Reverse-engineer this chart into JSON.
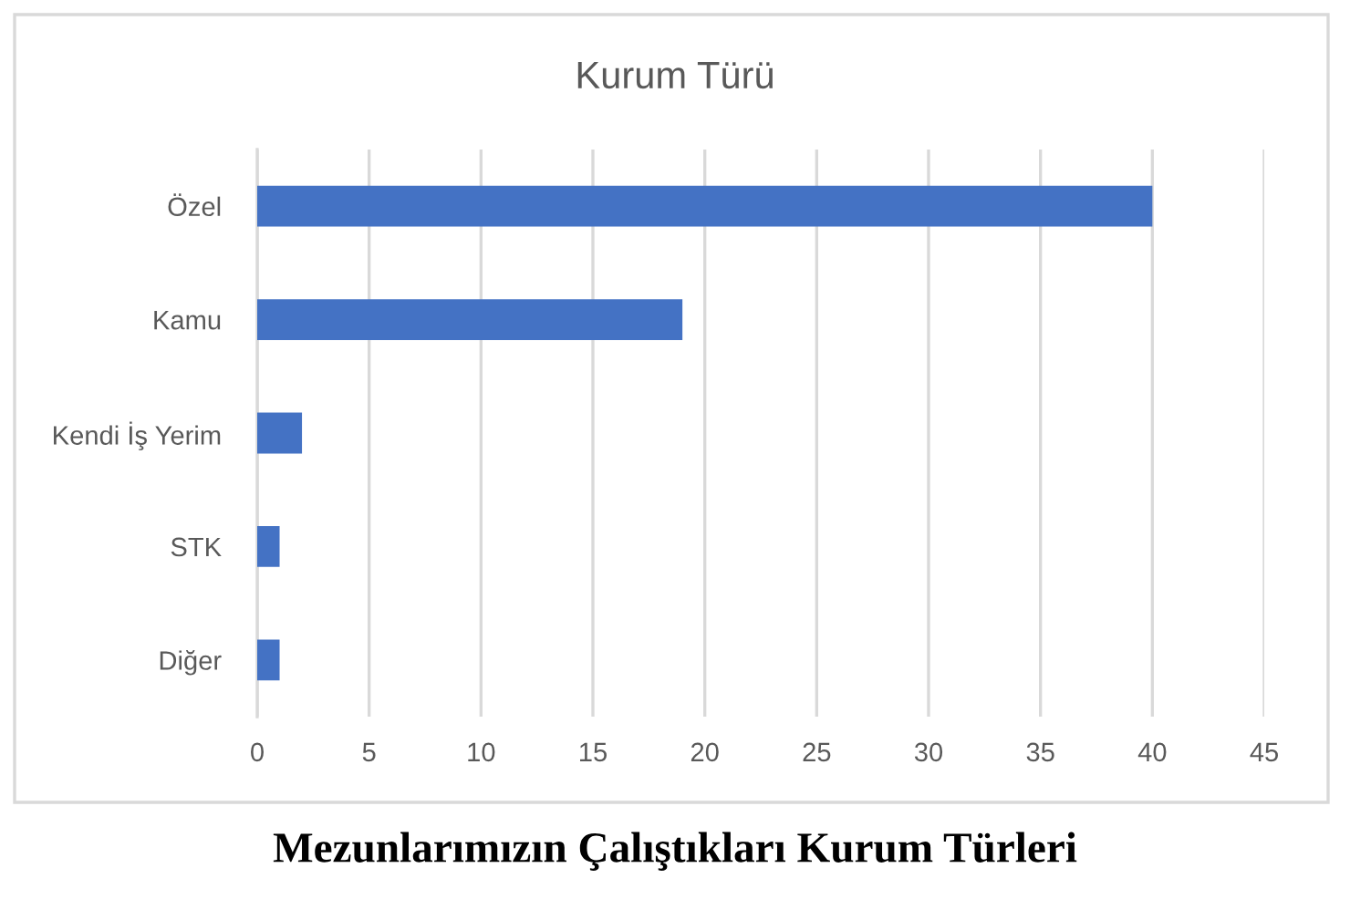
{
  "chart_data": {
    "type": "bar",
    "orientation": "horizontal",
    "title": "Kurum Türü",
    "categories": [
      "Özel",
      "Kamu",
      "Kendi İş Yerim",
      "STK",
      "Diğer"
    ],
    "values": [
      40,
      19,
      2,
      1,
      1
    ],
    "color": "#4472c4",
    "xlim": [
      0,
      45
    ],
    "xticks": [
      0,
      5,
      10,
      15,
      20,
      25,
      30,
      35,
      40,
      45
    ],
    "grid": "x",
    "annotations": [
      "Mezunlarımızın Çalıştıkları Kurum Türleri"
    ]
  }
}
